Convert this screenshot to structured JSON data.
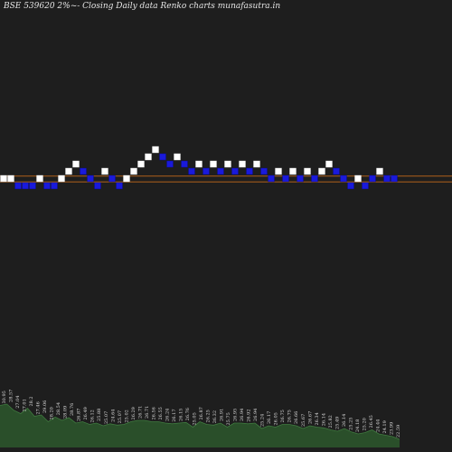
{
  "chart_data": {
    "type": "renko",
    "title": "BSE 539620  2%~-  Closing Daily data  Renko  charts munafasutra.in",
    "colors": {
      "background": "#1e1e1e",
      "up_brick": "#ffffff",
      "down_brick": "#1a1adb",
      "reference_line": "#c46a1a",
      "volume": "#2a4f2a",
      "volume_top": "#3f7a3f"
    },
    "brick_levels": [
      0,
      0,
      -1,
      -1,
      -1,
      0,
      -1,
      -1,
      0,
      1,
      2,
      1,
      0,
      -1,
      1,
      0,
      -1,
      0,
      1,
      2,
      3,
      4,
      3,
      2,
      3,
      2,
      1,
      2,
      1,
      2,
      1,
      2,
      1,
      2,
      1,
      2,
      1,
      0,
      1,
      0,
      1,
      0,
      1,
      0,
      1,
      2,
      1,
      0,
      -1,
      0,
      -1,
      0,
      1,
      0,
      0
    ],
    "brick_directions": [
      "up",
      "up",
      "down",
      "down",
      "down",
      "up",
      "down",
      "down",
      "up",
      "up",
      "up",
      "down",
      "down",
      "down",
      "up",
      "down",
      "down",
      "up",
      "up",
      "up",
      "up",
      "up",
      "down",
      "down",
      "up",
      "down",
      "down",
      "up",
      "down",
      "up",
      "down",
      "up",
      "down",
      "up",
      "down",
      "up",
      "down",
      "down",
      "up",
      "down",
      "up",
      "down",
      "up",
      "down",
      "up",
      "up",
      "down",
      "down",
      "down",
      "up",
      "down",
      "down",
      "up",
      "down",
      "down"
    ],
    "reference_levels": [
      0.4,
      -0.4
    ],
    "volume_labels": [
      "30.95",
      "28.57",
      "27.04",
      "27.01",
      "28.2",
      "27.46",
      "29.06",
      "28.20",
      "28.54",
      "28.09",
      "28.76",
      "26.87",
      "26.49",
      "26.12",
      "25.88",
      "25.07",
      "24.64",
      "25.07",
      "25.02",
      "26.29",
      "26.71",
      "26.71",
      "26.56",
      "26.55",
      "26.24",
      "26.17",
      "26.15",
      "26.76",
      "25.05",
      "26.87",
      "26.25",
      "26.32",
      "26.91",
      "25.75",
      "26.95",
      "26.94",
      "26.92",
      "26.94",
      "25.24",
      "26.17",
      "26.05",
      "26.75",
      "26.75",
      "26.66",
      "25.67",
      "26.67",
      "26.34",
      "26.14",
      "25.82",
      "25.49",
      "26.14",
      "25.25",
      "24.18",
      "25.20",
      "26.45",
      "24.44",
      "24.19",
      "23.99",
      "22.59"
    ],
    "volume_values": [
      62,
      64,
      55,
      50,
      58,
      46,
      48,
      38,
      45,
      40,
      44,
      36,
      38,
      34,
      36,
      32,
      35,
      33,
      34,
      38,
      40,
      40,
      38,
      38,
      36,
      35,
      36,
      37,
      30,
      38,
      34,
      33,
      36,
      30,
      36,
      36,
      35,
      36,
      28,
      32,
      30,
      34,
      34,
      32,
      28,
      32,
      30,
      29,
      26,
      24,
      28,
      23,
      20,
      22,
      26,
      20,
      18,
      16,
      12
    ]
  }
}
